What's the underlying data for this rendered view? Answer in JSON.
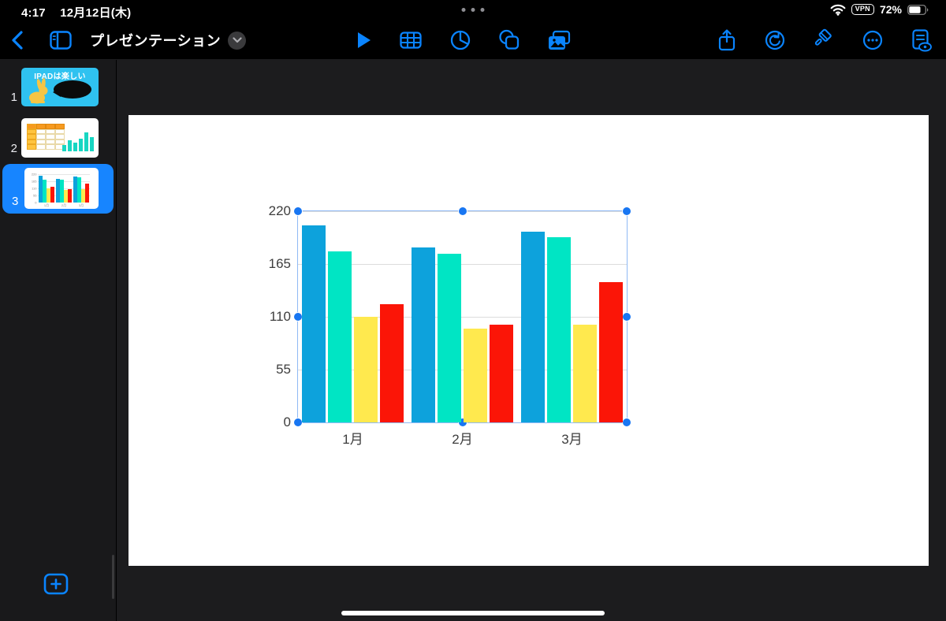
{
  "status_bar": {
    "time": "4:17",
    "date": "12月12日(木)",
    "vpn_label": "VPN",
    "battery_percent": "72%",
    "battery_level": 0.72
  },
  "toolbar": {
    "title": "プレゼンテーション"
  },
  "sidebar": {
    "slides": [
      {
        "number": "1",
        "thumb_title": "IPADは楽しい",
        "selected": false
      },
      {
        "number": "2",
        "selected": false,
        "thumb_chart": {
          "type": "bar",
          "values": [
            8,
            14,
            11,
            16,
            24,
            18
          ],
          "color": "#17d6c2"
        }
      },
      {
        "number": "3",
        "selected": true
      }
    ]
  },
  "chart_data": {
    "type": "bar",
    "title": "",
    "categories": [
      "1月",
      "2月",
      "3月"
    ],
    "series": [
      {
        "name": "series-1",
        "color": "#0da2dc",
        "values": [
          205,
          182,
          199
        ]
      },
      {
        "name": "series-2",
        "color": "#00e5c4",
        "values": [
          178,
          176,
          193
        ]
      },
      {
        "name": "series-3",
        "color": "#ffe94e",
        "values": [
          110,
          98,
          102
        ]
      },
      {
        "name": "series-4",
        "color": "#fb1507",
        "values": [
          123,
          102,
          146
        ]
      }
    ],
    "ylim": [
      0,
      220
    ],
    "yticks": [
      0,
      55,
      110,
      165,
      220
    ],
    "grid": true,
    "legend": "none",
    "selected": true
  },
  "colors": {
    "accent_blue": "#0a84ff",
    "selection_blue": "#1785ff",
    "handle_blue": "#1876f2",
    "slide1_bg": "#2fc2f0",
    "rabbit_yellow": "#f6c544"
  }
}
